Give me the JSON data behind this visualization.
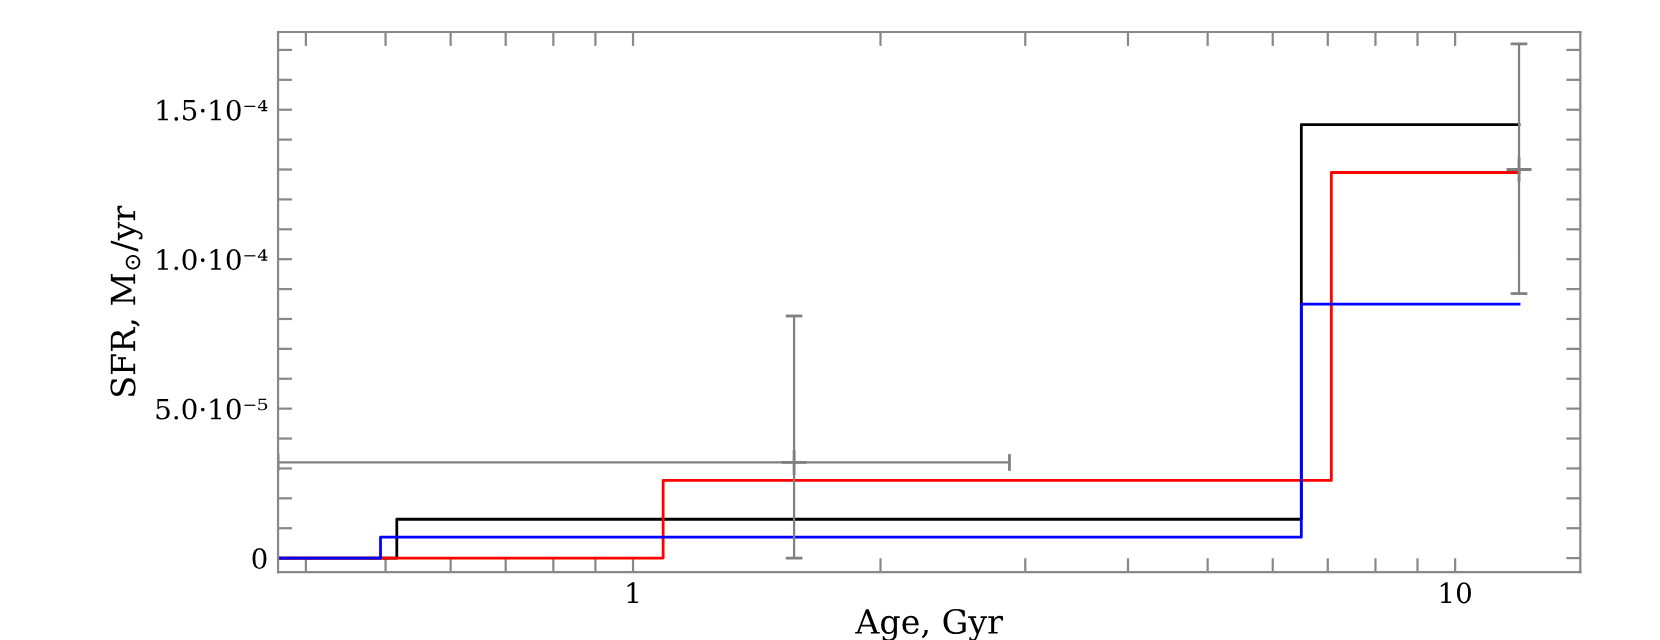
{
  "chart_data": {
    "type": "step",
    "xlabel": "Age, Gyr",
    "ylabel": "SFR, M$_{⊙}$/yr",
    "log": "x",
    "grid": false,
    "legend": false,
    "marker": "none",
    "line_style": "solid",
    "xlim": [
      0.37,
      14.2
    ],
    "ylim": [
      -4.7e-06,
      0.000176
    ],
    "xticks": [
      {
        "value": 0.4,
        "label": null
      },
      {
        "value": 0.5,
        "label": null
      },
      {
        "value": 0.6,
        "label": null
      },
      {
        "value": 0.7,
        "label": null
      },
      {
        "value": 0.8,
        "label": null
      },
      {
        "value": 0.9,
        "label": null
      },
      1,
      {
        "value": 2,
        "label": null
      },
      {
        "value": 3,
        "label": null
      },
      {
        "value": 4,
        "label": null
      },
      {
        "value": 5,
        "label": null
      },
      {
        "value": 6,
        "label": null
      },
      {
        "value": 7,
        "label": null
      },
      {
        "value": 8,
        "label": null
      },
      {
        "value": 9,
        "label": null
      },
      10
    ],
    "yticks": [
      {
        "value": 0,
        "label": "0"
      },
      {
        "value": 1e-05,
        "label": null
      },
      {
        "value": 2e-05,
        "label": null
      },
      {
        "value": 3e-05,
        "label": null
      },
      {
        "value": 4e-05,
        "label": null
      },
      {
        "value": 5e-05,
        "label": "5.0·10⁻⁵"
      },
      {
        "value": 6e-05,
        "label": null
      },
      {
        "value": 7e-05,
        "label": null
      },
      {
        "value": 8e-05,
        "label": null
      },
      {
        "value": 9e-05,
        "label": null
      },
      {
        "value": 0.0001,
        "label": "1.0·10⁻⁴"
      },
      {
        "value": 0.00011,
        "label": null
      },
      {
        "value": 0.00012,
        "label": null
      },
      {
        "value": 0.00013,
        "label": null
      },
      {
        "value": 0.00014,
        "label": null
      },
      {
        "value": 0.00015,
        "label": "1.5·10⁻⁴"
      },
      {
        "value": 0.00016,
        "label": null
      },
      {
        "value": 0.00017,
        "label": null
      }
    ],
    "series": [
      {
        "color": "#000000",
        "x": [
          0.37,
          0.516,
          6.5,
          11.96
        ],
        "values": [
          0,
          1.3e-05,
          0.000145,
          0.000145
        ]
      },
      {
        "color": "#ff0000",
        "x": [
          0.37,
          1.088,
          7.07,
          11.96
        ],
        "values": [
          0,
          2.6e-05,
          0.000129,
          0.000129
        ]
      },
      {
        "color": "#0000ff",
        "x": [
          0.37,
          0.493,
          6.5,
          11.96
        ],
        "values": [
          0,
          7e-06,
          8.5e-05,
          8.5e-05
        ]
      },
      {
        "type": "scatter",
        "color": "#808080",
        "marker": "cross",
        "x": [
          1.57,
          11.96
        ],
        "values": [
          3.2e-05,
          0.00013
        ],
        "errors": [
          [
            0,
            8.1e-05
          ],
          [
            8.85e-05,
            0.000172
          ]
        ],
        "xerrors": [
          [
            0.37,
            2.87
          ],
          null
        ]
      }
    ]
  }
}
